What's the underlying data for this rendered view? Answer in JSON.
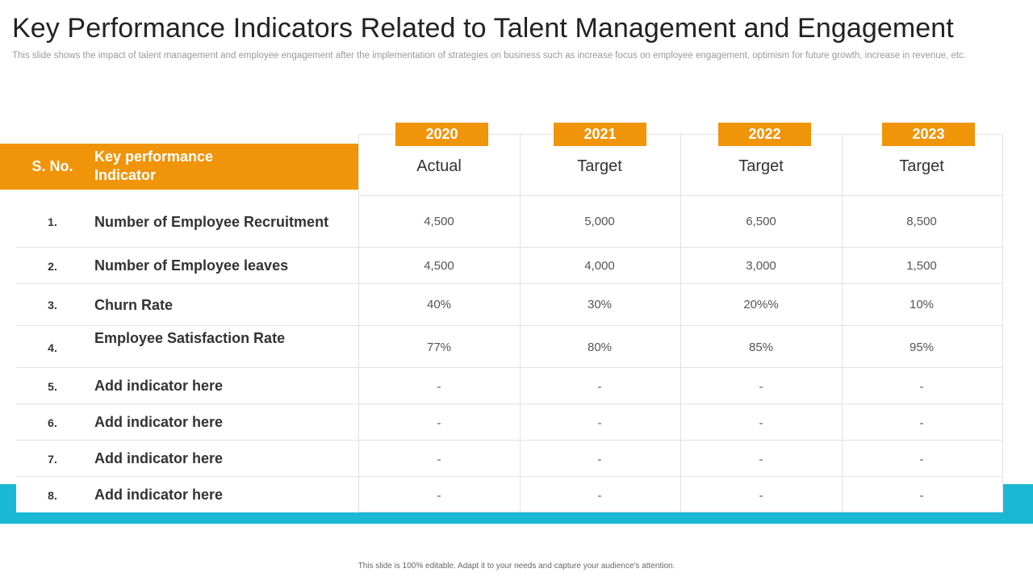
{
  "title": "Key Performance Indicators Related to Talent Management and Engagement",
  "subtitle": "This slide shows the impact of talent management  and employee engagement  after the implementation of strategies on business such as increase focus on employee engagement,  optimism for future growth,  increase  in revenue,  etc.",
  "table": {
    "header": {
      "sno": "S. No.",
      "kpi": "Key performance Indicator"
    },
    "years": [
      "2020",
      "2021",
      "2022",
      "2023"
    ],
    "kinds": [
      "Actual",
      "Target",
      "Target",
      "Target"
    ],
    "rows": [
      {
        "sno": "1.",
        "kpi": "Number of Employee Recruitment",
        "values": [
          "4,500",
          "5,000",
          "6,500",
          "8,500"
        ]
      },
      {
        "sno": "2.",
        "kpi": "Number of Employee leaves",
        "values": [
          "4,500",
          "4,000",
          "3,000",
          "1,500"
        ]
      },
      {
        "sno": "3.",
        "kpi": "Churn Rate",
        "values": [
          "40%",
          "30%",
          "20%%",
          "10%"
        ]
      },
      {
        "sno": "4.",
        "kpi": "Employee Satisfaction Rate",
        "values": [
          "77%",
          "80%",
          "85%",
          "95%"
        ]
      },
      {
        "sno": "5.",
        "kpi": "Add indicator here",
        "values": [
          "-",
          "-",
          "-",
          "-"
        ]
      },
      {
        "sno": "6.",
        "kpi": "Add indicator here",
        "values": [
          "-",
          "-",
          "-",
          "-"
        ]
      },
      {
        "sno": "7.",
        "kpi": "Add indicator here",
        "values": [
          "-",
          "-",
          "-",
          "-"
        ]
      },
      {
        "sno": "8.",
        "kpi": "Add indicator here",
        "values": [
          "-",
          "-",
          "-",
          "-"
        ]
      }
    ]
  },
  "footer": "This slide is 100% editable.  Adapt it to your needs and capture your audience's attention.",
  "colors": {
    "accent": "#f0940a",
    "band": "#1bb8d6",
    "grid": "#e2e2e2"
  }
}
